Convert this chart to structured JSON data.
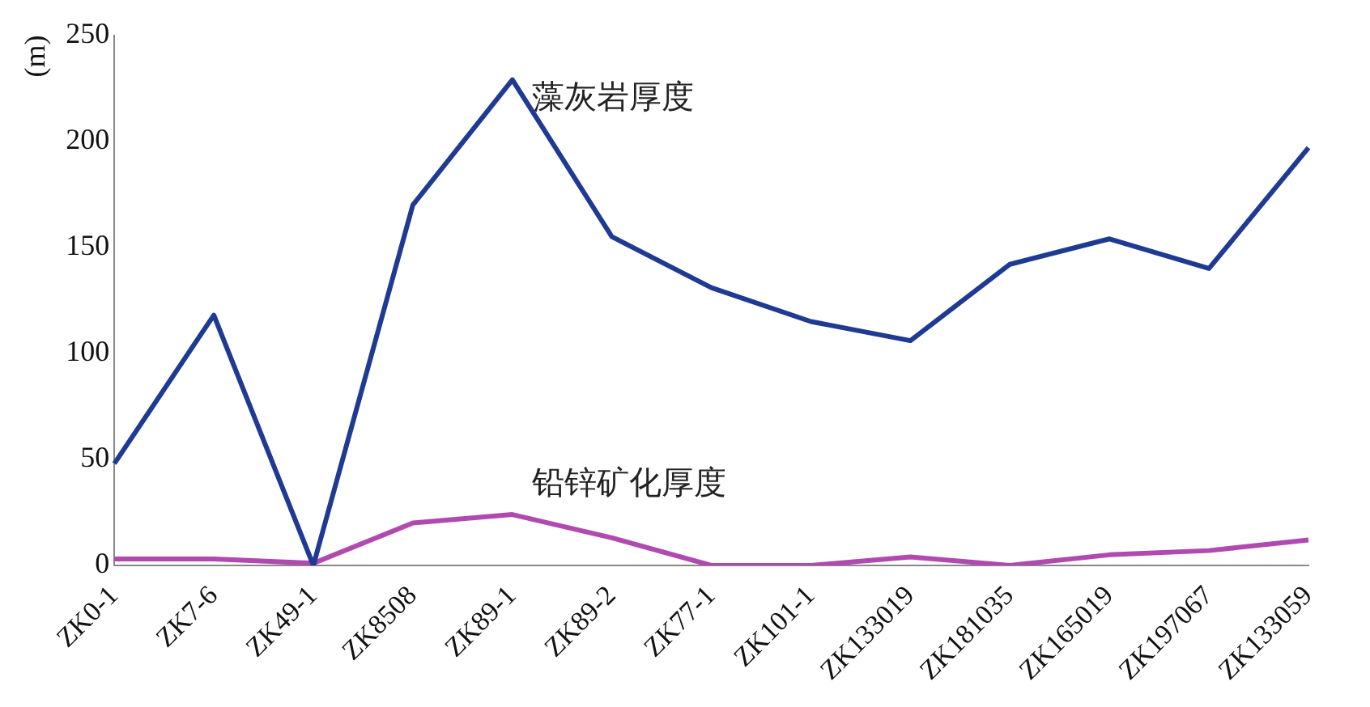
{
  "chart_data": {
    "type": "line",
    "ylabel": "(m)",
    "categories": [
      "ZK0-1",
      "ZK7-6",
      "ZK49-1",
      "ZK8508",
      "ZK89-1",
      "ZK89-2",
      "ZK77-1",
      "ZK101-1",
      "ZK133019",
      "ZK181035",
      "ZK165019",
      "ZK197067",
      "ZK133059"
    ],
    "series": [
      {
        "name": "藻灰岩厚度",
        "color": "#1f3a93",
        "values": [
          48,
          118,
          0,
          170,
          229,
          155,
          131,
          115,
          106,
          142,
          154,
          140,
          197
        ]
      },
      {
        "name": "铅锌矿化厚度",
        "color": "#b04ab0",
        "values": [
          3,
          3,
          1,
          20,
          24,
          13,
          0,
          0,
          4,
          0,
          5,
          7,
          12
        ]
      }
    ],
    "ylim": [
      0,
      250
    ],
    "yticks": [
      0,
      50,
      100,
      150,
      200,
      250
    ],
    "grid": false,
    "legend": false,
    "marker": "none",
    "line_style": "solid"
  }
}
